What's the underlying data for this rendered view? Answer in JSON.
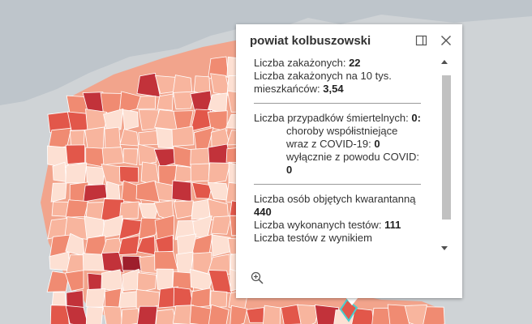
{
  "popup": {
    "title": "powiat kolbuszowski",
    "dock_icon": "dock-side-icon",
    "close_icon": "close-icon",
    "zoom_icon": "zoom-to-icon",
    "fields": {
      "infected_label": "Liczba zakażonych: ",
      "infected_value": "22",
      "infected_per10k_label": "Liczba zakażonych na 10 tys. mieszkańców: ",
      "infected_per10k_value": "3,54",
      "deaths_label": "Liczba przypadków śmiertelnych: ",
      "deaths_value": "0",
      "comorb_label": "choroby współistniejące wraz z COVID-19: ",
      "comorb_value": "0",
      "covid_only_label": "wyłącznie z powodu COVID: ",
      "covid_only_value": "0",
      "quarantine_label": "Liczba osób objętych kwarantanną ",
      "quarantine_value": "440",
      "tests_label": "Liczba wykonanych testów: ",
      "tests_value": "111",
      "positive_tests_label": "Liczba testów z wynikiem"
    }
  },
  "map": {
    "background_color": "#c9cdd1",
    "sea_color": "#bcc3c9",
    "region_colors": [
      "#fde0d3",
      "#f8b59e",
      "#f08b72",
      "#e2574a",
      "#c2323a",
      "#9e1f2c"
    ]
  }
}
